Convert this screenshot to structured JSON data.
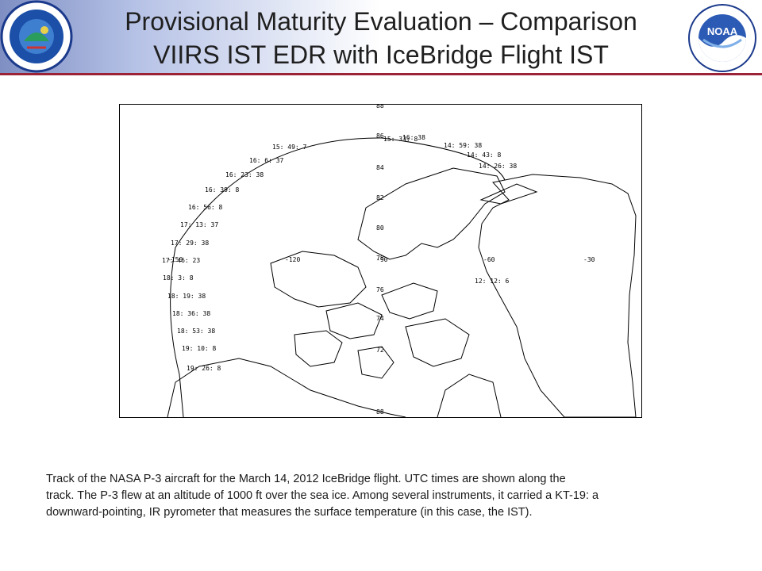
{
  "slide": {
    "title_line1": "Provisional Maturity Evaluation – Comparison",
    "title_line2": "VIIRS IST EDR with IceBridge Flight IST",
    "logo_left_icon": "noaa-nesdis-star-seal",
    "logo_right_icon": "noaa-logo",
    "logo_right_text": "NOAA",
    "accent_color": "#9b2335"
  },
  "map": {
    "track_times": [
      "16: 38",
      "14: 59: 38",
      "14: 43: 8",
      "14: 26: 38",
      "15: 33: 8",
      "15: 49: 7",
      "16: 6: 37",
      "16: 23: 38",
      "16: 39: 8",
      "16: 56: 8",
      "17: 13: 37",
      "17: 29: 38",
      "17: 46: 23",
      "18: 3: 8",
      "18: 19: 38",
      "18: 36: 38",
      "18: 53: 38",
      "19: 10: 8",
      "19: 26: 8",
      "12: 12: 6"
    ],
    "lat_labels": [
      "88",
      "86",
      "84",
      "82",
      "80",
      "78",
      "76",
      "74",
      "72",
      "88"
    ],
    "lon_labels": [
      "-120",
      "-90",
      "-60",
      "-30"
    ],
    "extra_labels": [
      "-150"
    ]
  },
  "caption": {
    "line1": "Track of the NASA P-3 aircraft for the March 14, 2012 IceBridge flight.  UTC times are shown along the",
    "line2": "track.  The P-3 flew at an altitude of 1000 ft over the sea ice.  Among several instruments, it carried a KT-19: a",
    "line3": "downward-pointing, IR pyrometer that measures the surface temperature (in this case, the IST)."
  }
}
